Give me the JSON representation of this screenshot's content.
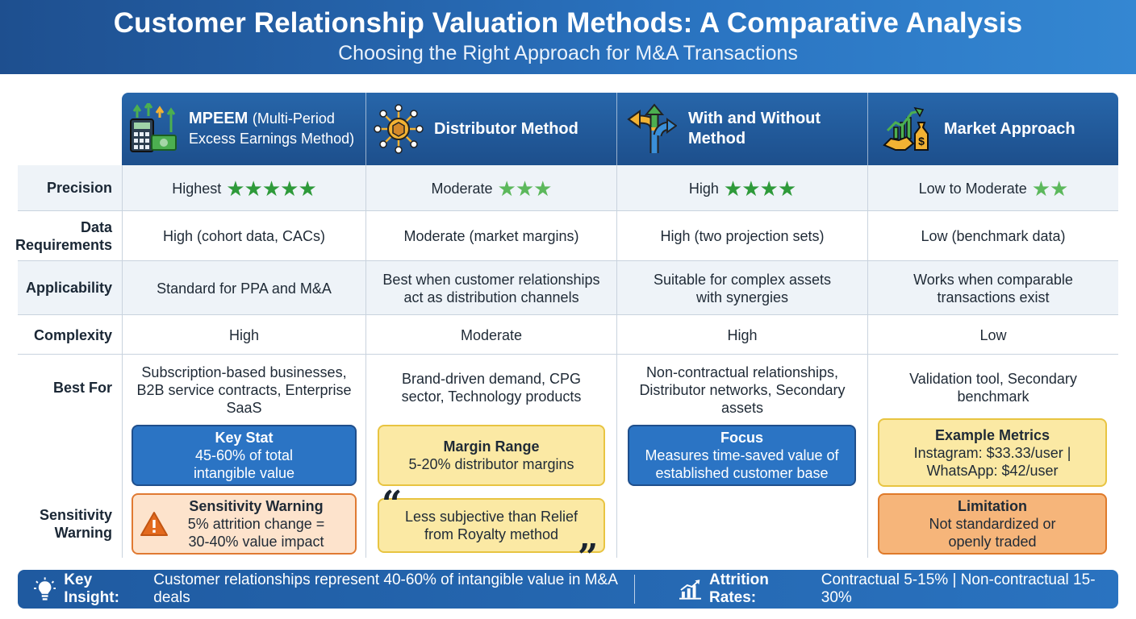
{
  "title": "Customer Relationship Valuation Methods: A Comparative Analysis",
  "subtitle": "Choosing the Right Approach for M&A Transactions",
  "methods": [
    {
      "name": "MPEEM",
      "name_sub": "(Multi-Period Excess Earnings Method)",
      "icon": "calculator-money-icon"
    },
    {
      "name": "Distributor Method",
      "icon": "distribution-network-icon"
    },
    {
      "name": "With and Without Method",
      "icon": "branching-arrows-icon"
    },
    {
      "name": "Market Approach",
      "icon": "handshake-growth-icon"
    }
  ],
  "row_labels": {
    "precision": "Precision",
    "data": "Data Requirements",
    "applicability": "Applicability",
    "complexity": "Complexity",
    "best_for": "Best For",
    "sensitivity": "Sensitivity Warning"
  },
  "precision": [
    {
      "text": "Highest",
      "stars": 5
    },
    {
      "text": "Moderate",
      "stars": 3
    },
    {
      "text": "High",
      "stars": 4
    },
    {
      "text": "Low to Moderate",
      "stars": 2
    }
  ],
  "data_requirements": [
    "High (cohort data, CACs)",
    "Moderate (market margins)",
    "High (two projection sets)",
    "Low (benchmark data)"
  ],
  "applicability": [
    "Standard for PPA and M&A",
    "Best when customer relationships act as distribution channels",
    "Suitable for complex assets with synergies",
    "Works when comparable transactions exist"
  ],
  "complexity": [
    "High",
    "Moderate",
    "High",
    "Low"
  ],
  "best_for": [
    "Subscription-based businesses, B2B service contracts, Enterprise SaaS",
    "Brand-driven demand, CPG sector, Technology products",
    "Non-contractual relationships, Distributor networks, Secondary assets",
    "Validation tool, Secondary benchmark"
  ],
  "boxes": {
    "mpeem_stat": {
      "title": "Key Stat",
      "body": "45-60% of total intangible value"
    },
    "mpeem_warning": {
      "title": "Sensitivity Warning",
      "body": "5% attrition change = 30-40% value impact"
    },
    "dist_margin": {
      "title": "Margin Range",
      "body": "5-20% distributor margins"
    },
    "dist_quote": {
      "body": "Less subjective than Relief from Royalty method"
    },
    "ww_focus": {
      "title": "Focus",
      "body": "Measures time-saved value of established customer base"
    },
    "market_metrics": {
      "title": "Example Metrics",
      "body": "Instagram: $33.33/user | WhatsApp: $42/user"
    },
    "market_limitation": {
      "title": "Limitation",
      "body": "Not standardized or openly traded"
    }
  },
  "footer": {
    "insight_label": "Key Insight:",
    "insight_text": "Customer relationships represent 40-60% of intangible value in M&A deals",
    "attrition_label": "Attrition Rates:",
    "attrition_text": "Contractual 5-15% | Non-contractual 15-30%"
  },
  "colors": {
    "header_blue": "#1e4f8f",
    "star_green": "#2e9a3a",
    "stat_blue": "#2b74c4",
    "note_yellow": "#fbe9a4",
    "warning_orange": "#e07a32"
  }
}
